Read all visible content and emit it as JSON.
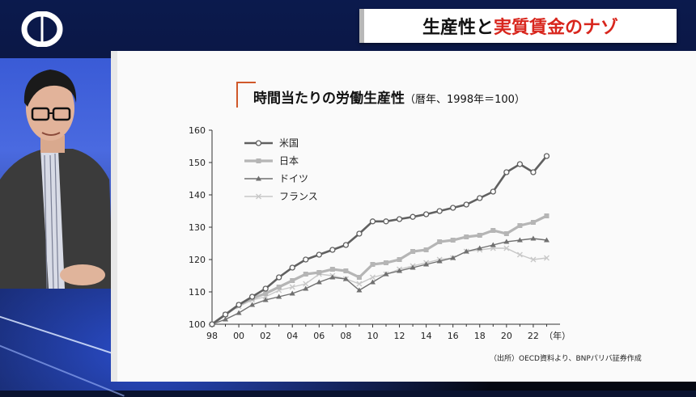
{
  "program": {
    "title_black_1": "生産性と",
    "title_red": "実質賃金のナゾ",
    "colors": {
      "accent_red": "#d8261d",
      "banner_bg": "#ffffff"
    }
  },
  "chart_data": {
    "type": "line",
    "title": "時間当たりの労働生産性",
    "subtitle": "（暦年、1998年＝100）",
    "xlabel": "（年）",
    "ylabel": "",
    "x_ticks": [
      "98",
      "00",
      "02",
      "04",
      "06",
      "08",
      "10",
      "12",
      "14",
      "16",
      "18",
      "20",
      "22"
    ],
    "y_ticks": [
      100,
      110,
      120,
      130,
      140,
      150,
      160
    ],
    "ylim": [
      100,
      160
    ],
    "grid": false,
    "legend_position": "top-left",
    "x": [
      1998,
      1999,
      2000,
      2001,
      2002,
      2003,
      2004,
      2005,
      2006,
      2007,
      2008,
      2009,
      2010,
      2011,
      2012,
      2013,
      2014,
      2015,
      2016,
      2017,
      2018,
      2019,
      2020,
      2021,
      2022,
      2023
    ],
    "series": [
      {
        "name": "米国",
        "marker": "circle",
        "color": "#606060",
        "values": [
          100,
          103,
          106,
          108.5,
          111,
          114.5,
          117.5,
          120,
          121.5,
          123,
          124.5,
          128,
          131.8,
          131.8,
          132.5,
          133.2,
          134,
          135,
          136,
          137,
          139,
          141,
          147,
          149.5,
          147,
          152
        ]
      },
      {
        "name": "日本",
        "marker": "square",
        "color": "#b5b5b5",
        "values": [
          100,
          103,
          106,
          108,
          109.5,
          111.5,
          113.5,
          115.5,
          116,
          117,
          116.5,
          114.5,
          118.5,
          119,
          120,
          122.5,
          123,
          125.5,
          126,
          127,
          127.5,
          129,
          128,
          130.5,
          131.5,
          133.5
        ]
      },
      {
        "name": "ドイツ",
        "marker": "triangle",
        "color": "#707070",
        "values": [
          100,
          101.5,
          103.5,
          106,
          107.5,
          108.5,
          109.5,
          111,
          113,
          114.5,
          114,
          110.5,
          113,
          115.5,
          116.5,
          117.5,
          118.5,
          119.5,
          120.5,
          122.5,
          123.5,
          124.5,
          125.5,
          126,
          126.5,
          126
        ]
      },
      {
        "name": "フランス",
        "marker": "cross",
        "color": "#c8c8c8",
        "values": [
          100,
          103,
          105.5,
          107.5,
          108.5,
          110.5,
          111.5,
          112.5,
          115.5,
          115,
          114,
          112.5,
          114.5,
          115.5,
          117,
          118,
          119,
          120,
          120.5,
          122.5,
          123,
          123.5,
          123.5,
          121.5,
          120,
          120.5
        ]
      }
    ],
    "source_note": "（出所）OECD資料より、BNPパリバ証券作成"
  }
}
